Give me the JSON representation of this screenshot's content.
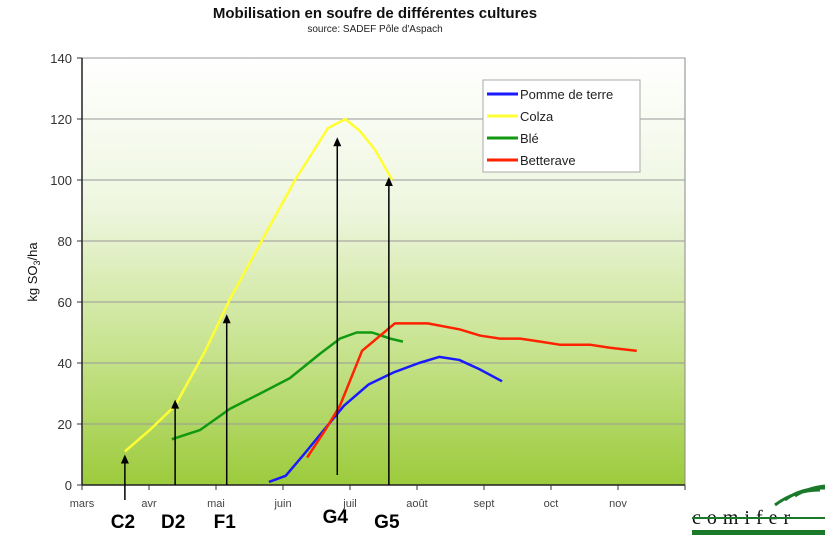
{
  "chart_data": {
    "type": "line",
    "title": "Mobilisation en soufre de différentes cultures",
    "subtitle": "source: SADEF Pôle d'Aspach",
    "ylabel": "kg SO3/ha",
    "ylabel_parts": {
      "pre": "kg SO",
      "sub": "3",
      "post": "/ha"
    },
    "xlabel": "",
    "ylim": [
      0,
      140
    ],
    "yticks": [
      0,
      20,
      40,
      60,
      80,
      100,
      120,
      140
    ],
    "xlim": [
      3,
      12
    ],
    "xticks": [
      {
        "value": 3,
        "label": "mars"
      },
      {
        "value": 4,
        "label": "avr"
      },
      {
        "value": 5,
        "label": "mai"
      },
      {
        "value": 6,
        "label": "juin"
      },
      {
        "value": 7,
        "label": "juil"
      },
      {
        "value": 8,
        "label": "août"
      },
      {
        "value": 9,
        "label": "sept"
      },
      {
        "value": 10,
        "label": "oct"
      },
      {
        "value": 11,
        "label": "nov"
      }
    ],
    "grid": true,
    "legend_position": "top-right",
    "series": [
      {
        "name": "Pomme de terre",
        "color": "#1a1aff",
        "x": [
          5.79,
          6.04,
          6.31,
          6.61,
          6.91,
          7.28,
          7.66,
          8.03,
          8.33,
          8.63,
          8.93,
          9.27
        ],
        "y": [
          1,
          3,
          10,
          18,
          26,
          33,
          37,
          40,
          42,
          41,
          38,
          34
        ]
      },
      {
        "name": "Colza",
        "color": "#ffff33",
        "x": [
          3.64,
          4.01,
          4.39,
          4.84,
          5.21,
          5.73,
          6.18,
          6.67,
          6.93,
          7.15,
          7.37,
          7.63
        ],
        "y": [
          11,
          18,
          26,
          44,
          61,
          82,
          100,
          117,
          120,
          116,
          110,
          100
        ]
      },
      {
        "name": "Blé",
        "color": "#119911",
        "x": [
          4.34,
          4.76,
          5.21,
          5.66,
          6.1,
          6.55,
          6.85,
          7.1,
          7.33,
          7.6,
          7.79
        ],
        "y": [
          15,
          18,
          25,
          30,
          35,
          43,
          48,
          50,
          50,
          48,
          47
        ]
      },
      {
        "name": "Betterave",
        "color": "#ff2200",
        "x": [
          6.36,
          6.63,
          6.85,
          7.18,
          7.67,
          8.16,
          8.64,
          8.94,
          9.24,
          9.54,
          9.84,
          10.13,
          10.58,
          10.88,
          11.28
        ],
        "y": [
          9,
          18,
          26,
          44,
          53,
          53,
          51,
          49,
          48,
          48,
          47,
          46,
          46,
          45,
          44
        ]
      }
    ],
    "annotations": [
      {
        "label": "C2",
        "x": 3.64,
        "y_top": 10
      },
      {
        "label": "D2",
        "x": 4.39,
        "y_top": 28
      },
      {
        "label": "F1",
        "x": 5.16,
        "y_top": 56
      },
      {
        "label": "G4",
        "x": 6.81,
        "y_top": 114
      },
      {
        "label": "G5",
        "x": 7.58,
        "y_top": 101
      }
    ]
  },
  "logo": {
    "text": "comifer",
    "color": "#1a7a2a"
  }
}
